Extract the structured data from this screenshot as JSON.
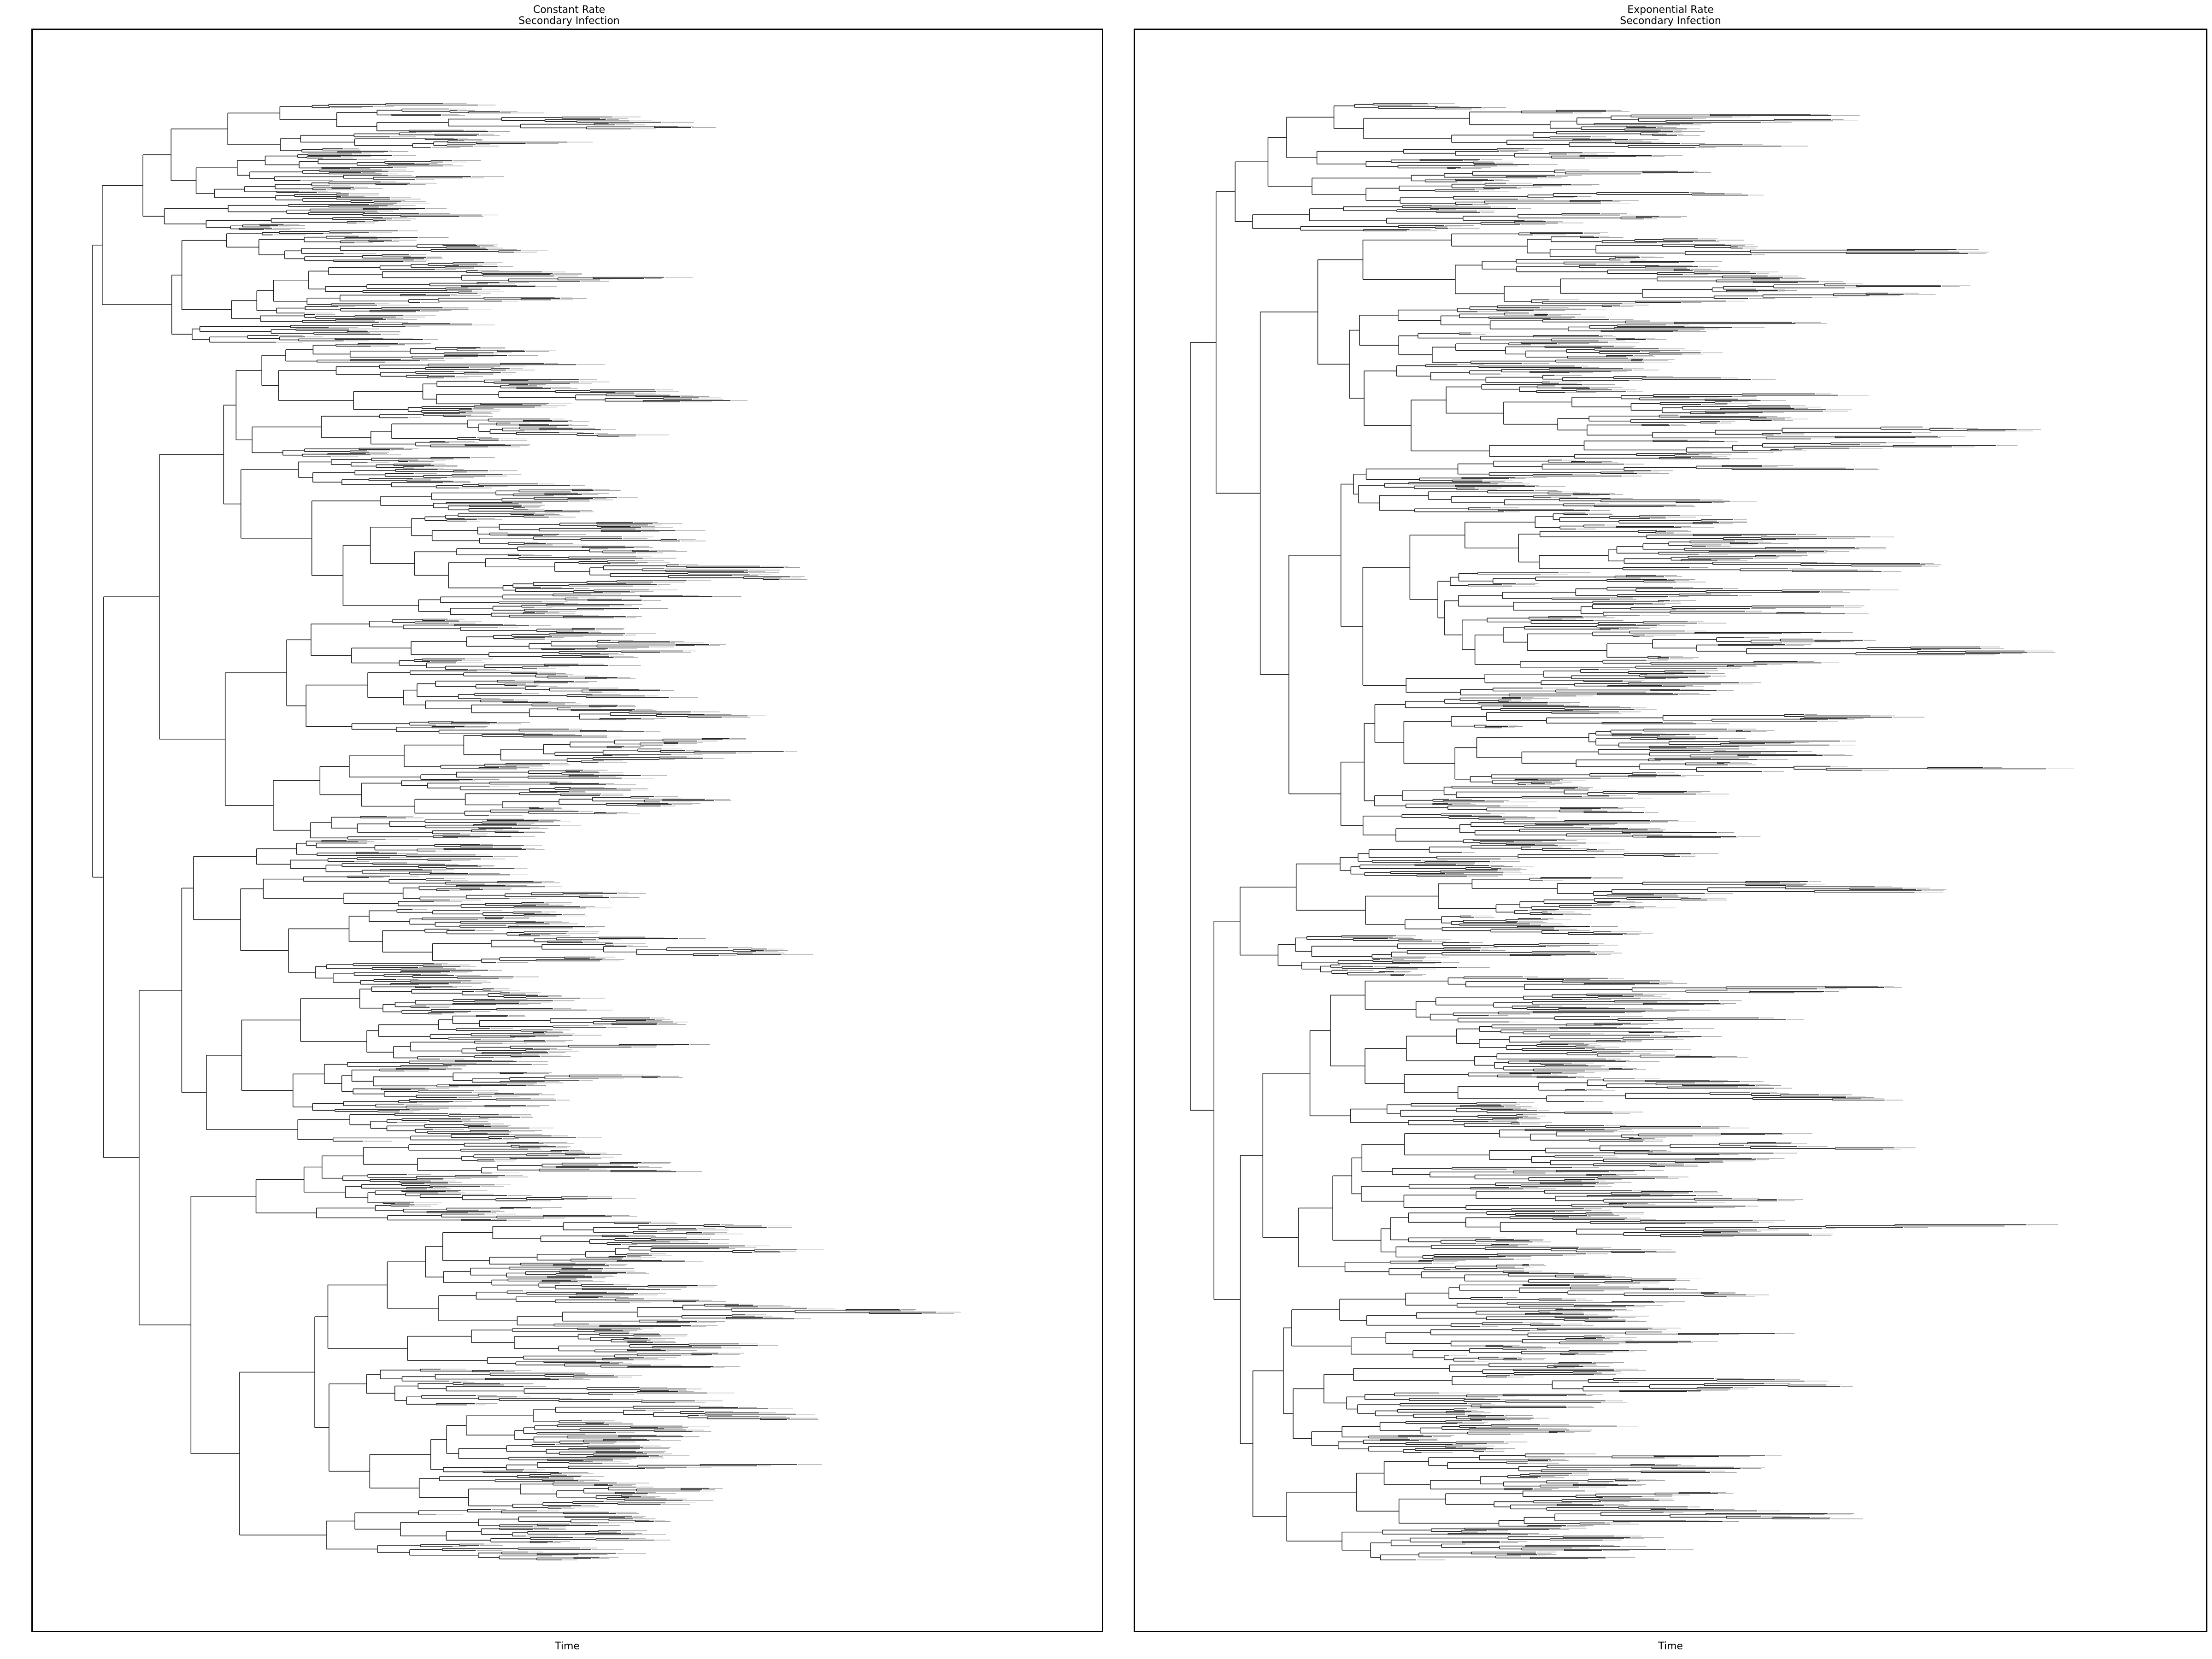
{
  "figure": {
    "panels": [
      {
        "title_line1": "Constant Rate",
        "title_line2": "Secondary Infection",
        "xlabel": "Time"
      },
      {
        "title_line1": "Exponential Rate",
        "title_line2": "Secondary Infection",
        "xlabel": "Time"
      }
    ],
    "colors": {
      "branch": "#222222",
      "tip_label": "#9a9a9a",
      "frame": "#000000"
    }
  }
}
